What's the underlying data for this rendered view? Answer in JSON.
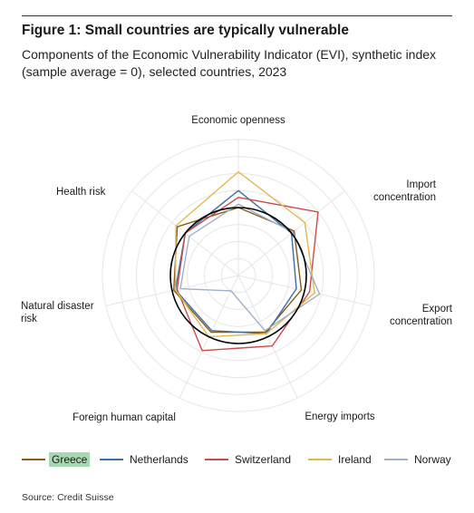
{
  "title": "Figure 1: Small countries are typically vulnerable",
  "subtitle": "Components of the Economic Vulnerability Indicator (EVI), synthetic index (sample average = 0), selected countries, 2023",
  "source": "Source: Credit Suisse",
  "colors": {
    "Greece": "#8a5a1a",
    "Netherlands": "#3a6fa8",
    "Switzerland": "#cc4a4a",
    "Ireland": "#e3b84a",
    "Norway": "#9fb0c8",
    "reference_circle": "#000000",
    "grid": "#e6e6e6"
  },
  "chart_data": {
    "type": "radar",
    "axes": [
      "Economic openness",
      "Import concentration",
      "Export concentration",
      "Energy imports",
      "Foreign human capital",
      "Natural disaster risk",
      "Health risk"
    ],
    "axis_label_lines": [
      [
        "Economic openness"
      ],
      [
        "Import",
        "concentration"
      ],
      [
        "Export",
        "concentration"
      ],
      [
        "Energy imports"
      ],
      [
        "Foreign human capital"
      ],
      [
        "Natural disaster",
        "risk"
      ],
      [
        "Health risk"
      ]
    ],
    "rings": 8,
    "r_max": 8,
    "reference_circle_radius": 4,
    "series": [
      {
        "name": "Greece",
        "values": [
          4.0,
          4.2,
          3.8,
          3.7,
          3.7,
          3.9,
          4.6
        ]
      },
      {
        "name": "Netherlands",
        "values": [
          5.0,
          4.0,
          3.5,
          3.8,
          3.6,
          3.8,
          4.0
        ]
      },
      {
        "name": "Switzerland",
        "values": [
          4.6,
          6.0,
          4.3,
          4.6,
          4.9,
          3.7,
          4.0
        ]
      },
      {
        "name": "Ireland",
        "values": [
          6.1,
          5.0,
          4.6,
          3.8,
          4.0,
          3.8,
          4.7
        ]
      },
      {
        "name": "Norway",
        "values": [
          4.2,
          4.1,
          4.9,
          3.6,
          1.0,
          3.5,
          3.7
        ]
      }
    ],
    "legend": [
      "Greece",
      "Netherlands",
      "Switzerland",
      "Ireland",
      "Norway"
    ],
    "highlighted_legend": "Greece"
  }
}
